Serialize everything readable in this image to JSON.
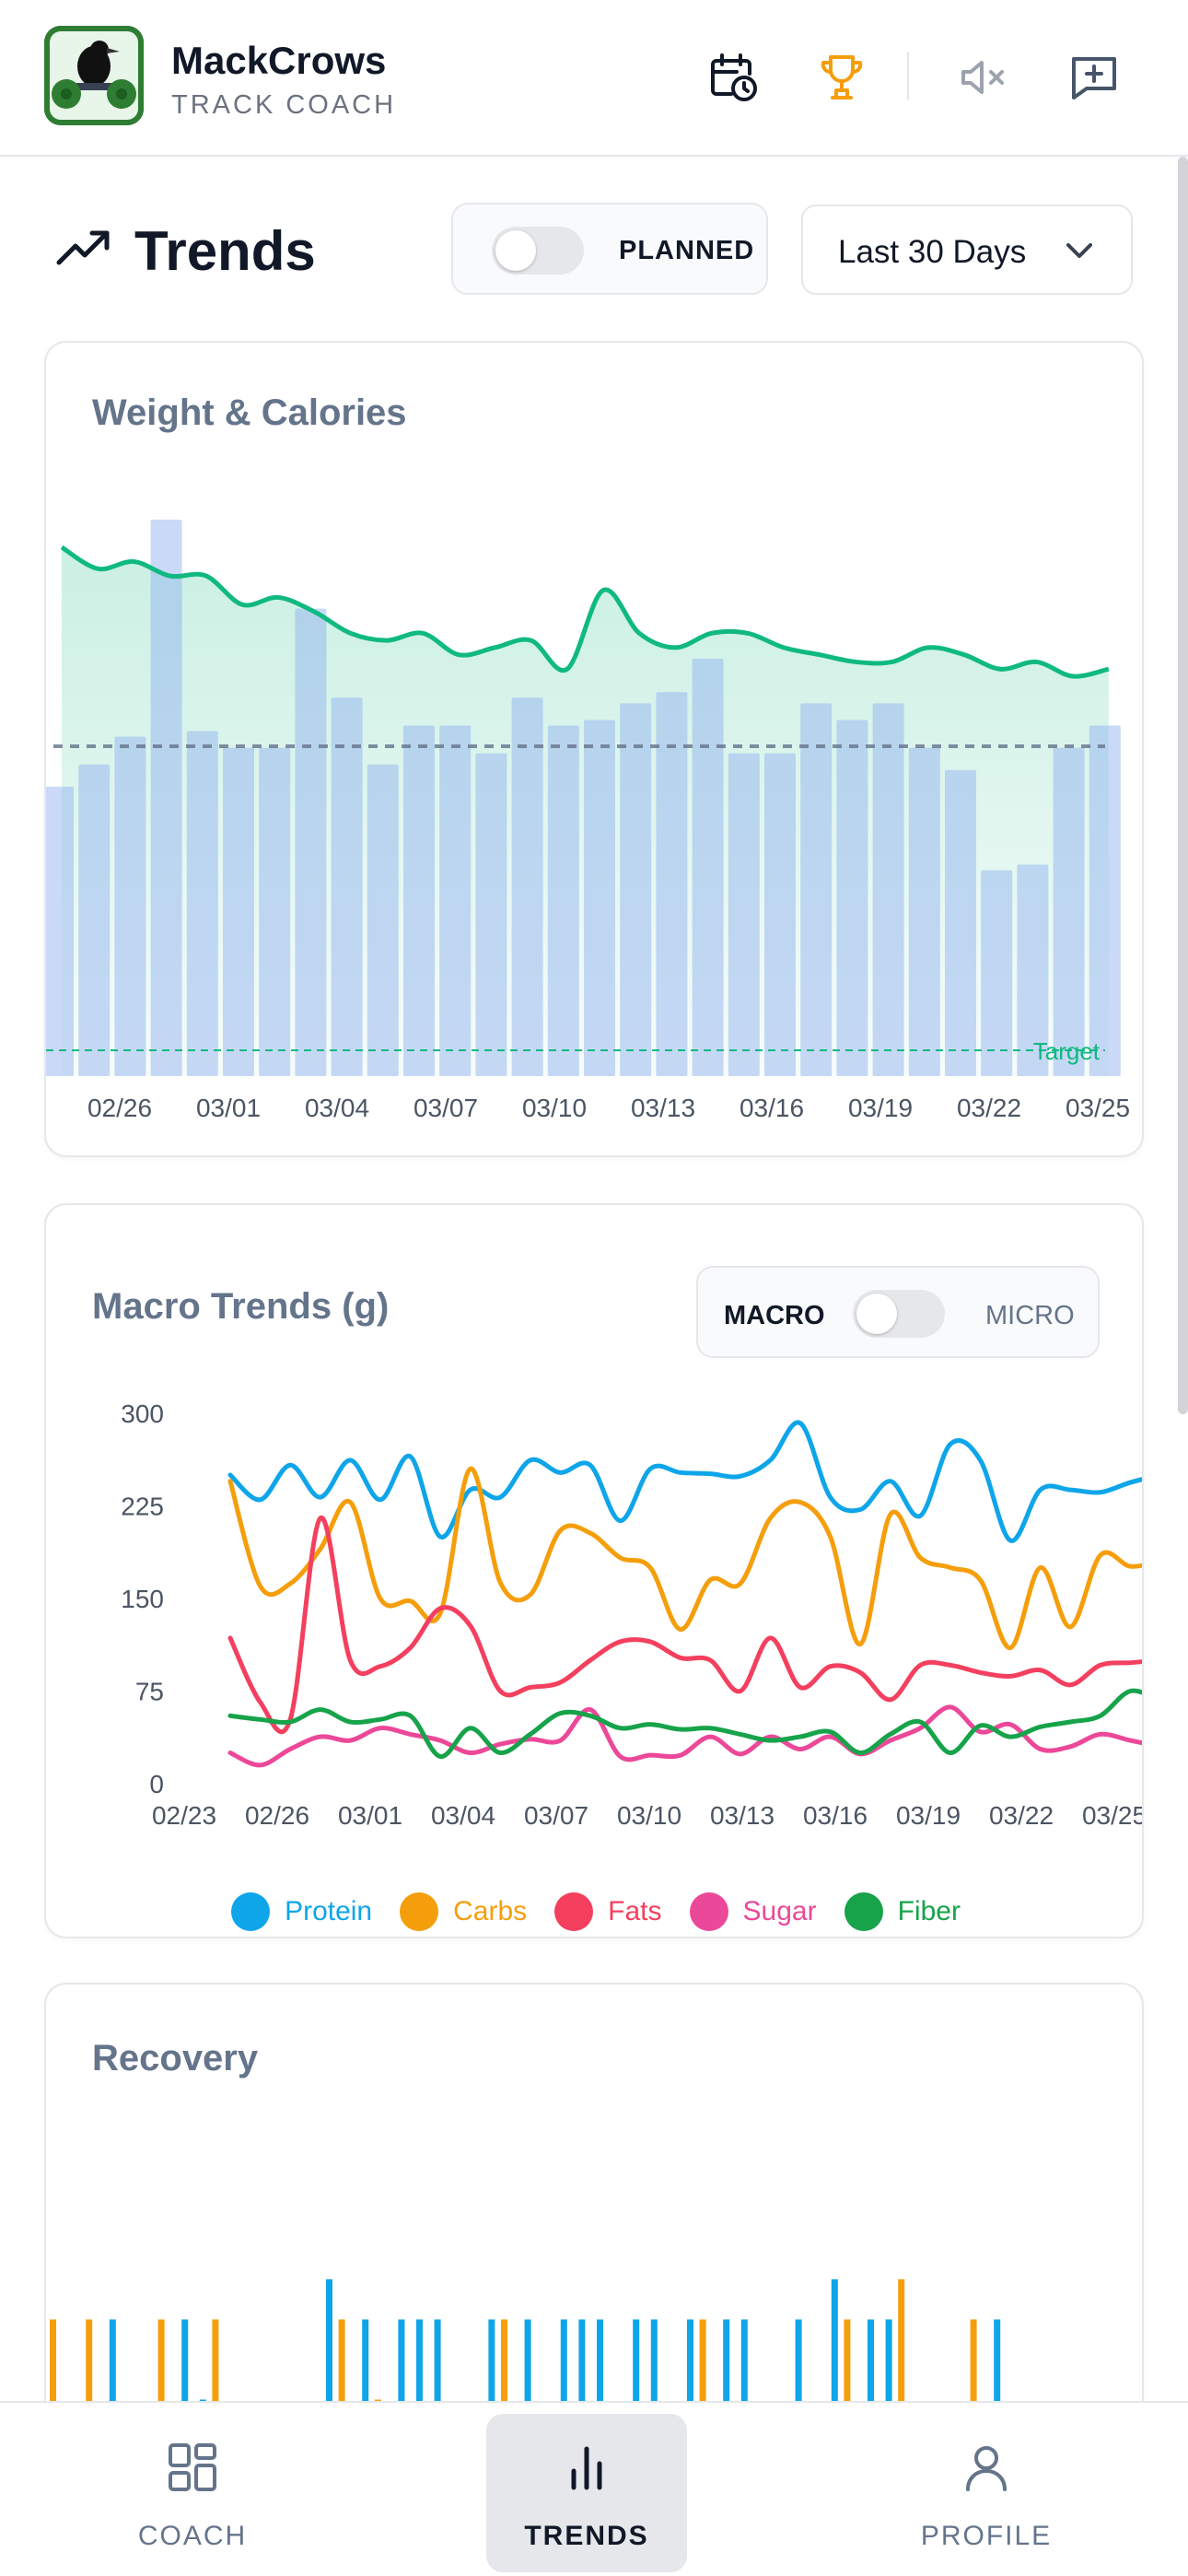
{
  "header": {
    "brand_name": "MackCrows",
    "brand_sub": "TRACK COACH",
    "icons": [
      "calendar-clock-icon",
      "trophy-icon",
      "volume-mute-icon",
      "feedback-icon"
    ]
  },
  "page": {
    "title": "Trends",
    "planned_label": "PLANNED",
    "planned_on": false,
    "range_selected": "Last 30 Days"
  },
  "weight_card": {
    "title": "Weight & Calories",
    "target_label": "Target",
    "x_ticks": [
      "02/26",
      "03/01",
      "03/04",
      "03/07",
      "03/10",
      "03/13",
      "03/16",
      "03/19",
      "03/22",
      "03/25"
    ],
    "chart_data": {
      "type": "bar",
      "title": "Weight & Calories",
      "note_series": [
        "calories (bars, relative)",
        "weight (line, relative)"
      ],
      "calories": [
        0.52,
        0.56,
        0.61,
        1.0,
        0.62,
        0.59,
        0.59,
        0.84,
        0.68,
        0.56,
        0.63,
        0.63,
        0.58,
        0.68,
        0.63,
        0.64,
        0.67,
        0.69,
        0.75,
        0.58,
        0.58,
        0.67,
        0.64,
        0.67,
        0.59,
        0.55,
        0.37,
        0.38,
        0.59,
        0.63
      ],
      "weight": [
        0.84,
        0.81,
        0.82,
        0.8,
        0.8,
        0.76,
        0.77,
        0.75,
        0.72,
        0.71,
        0.72,
        0.69,
        0.7,
        0.71,
        0.67,
        0.78,
        0.72,
        0.7,
        0.72,
        0.72,
        0.7,
        0.69,
        0.68,
        0.68,
        0.7,
        0.69,
        0.67,
        0.68,
        0.66,
        0.67
      ]
    }
  },
  "macro_card": {
    "title": "Macro Trends (g)",
    "toggle_left": "MACRO",
    "toggle_right": "MICRO",
    "chart_data": {
      "type": "line",
      "title": "Macro Trends (g)",
      "ylim": [
        0,
        300
      ],
      "y_ticks": [
        0,
        75,
        150,
        225,
        300
      ],
      "x_ticks": [
        "02/23",
        "02/26",
        "03/01",
        "03/04",
        "03/07",
        "03/10",
        "03/13",
        "03/16",
        "03/19",
        "03/22",
        "03/25"
      ],
      "series": [
        {
          "name": "Protein",
          "color": "#0ea5e9",
          "values": [
            250,
            230,
            258,
            232,
            262,
            230,
            265,
            200,
            238,
            232,
            262,
            252,
            258,
            213,
            255,
            252,
            251,
            249,
            262,
            292,
            232,
            222,
            245,
            217,
            275,
            262,
            197,
            238,
            238,
            236,
            244,
            250
          ]
        },
        {
          "name": "Carbs",
          "color": "#f59e0b",
          "values": [
            245,
            160,
            162,
            190,
            228,
            150,
            148,
            138,
            255,
            163,
            153,
            205,
            203,
            183,
            175,
            125,
            165,
            162,
            215,
            228,
            200,
            113,
            218,
            183,
            175,
            165,
            110,
            175,
            127,
            185,
            176,
            180
          ]
        },
        {
          "name": "Fats",
          "color": "#f43f5e",
          "values": [
            118,
            66,
            52,
            215,
            100,
            95,
            110,
            142,
            128,
            75,
            78,
            82,
            100,
            115,
            115,
            102,
            100,
            75,
            118,
            78,
            95,
            90,
            68,
            96,
            96,
            90,
            87,
            92,
            80,
            96,
            98,
            100
          ]
        },
        {
          "name": "Sugar",
          "color": "#ec4899",
          "values": [
            25,
            15,
            28,
            38,
            35,
            45,
            40,
            35,
            25,
            32,
            36,
            35,
            60,
            22,
            23,
            23,
            38,
            24,
            38,
            28,
            38,
            24,
            35,
            45,
            62,
            42,
            48,
            28,
            30,
            40,
            35,
            30
          ]
        },
        {
          "name": "Fiber",
          "color": "#16a34a",
          "values": [
            55,
            52,
            50,
            60,
            50,
            52,
            55,
            22,
            45,
            25,
            40,
            57,
            55,
            45,
            48,
            44,
            45,
            40,
            35,
            38,
            42,
            25,
            40,
            50,
            25,
            47,
            38,
            46,
            50,
            55,
            75,
            67
          ]
        }
      ]
    }
  },
  "recovery_card": {
    "title": "Recovery",
    "chart_data": {
      "type": "bar",
      "title": "Recovery",
      "note_series": [
        "blue (relative)",
        "orange (relative)"
      ],
      "blue": [
        0.0,
        0.44,
        0.0,
        0.85,
        0.0,
        0.19,
        0.0,
        0.85,
        0.55,
        0.0,
        0.44,
        0.0,
        0.19,
        0.0,
        0.0,
        1.0,
        0.0,
        0.85,
        0.0,
        0.85,
        0.85,
        0.85,
        0.44,
        0.0,
        0.85,
        0.0,
        0.85,
        0.0,
        0.85,
        0.85,
        0.85,
        0.0,
        0.85,
        0.85,
        0.0,
        0.85,
        0.0,
        0.85,
        0.85,
        0.0,
        0.0,
        0.85,
        0.44,
        1.0,
        0.0,
        0.85,
        0.85,
        0.0,
        0.44,
        0.0,
        0.44,
        0.0,
        0.85
      ],
      "orange": [
        0.85,
        0.0,
        0.85,
        0.0,
        0.0,
        0.0,
        0.85,
        0.0,
        0.0,
        0.85,
        0.0,
        0.0,
        0.0,
        0.0,
        0.0,
        0.0,
        0.85,
        0.0,
        0.55,
        0.0,
        0.0,
        0.0,
        0.0,
        0.0,
        0.0,
        0.85,
        0.0,
        0.0,
        0.0,
        0.0,
        0.0,
        0.0,
        0.0,
        0.0,
        0.0,
        0.0,
        0.85,
        0.0,
        0.0,
        0.0,
        0.0,
        0.0,
        0.0,
        0.0,
        0.85,
        0.0,
        0.0,
        1.0,
        0.0,
        0.0,
        0.0,
        0.85,
        0.0
      ]
    }
  },
  "nav": {
    "items": [
      {
        "label": "COACH",
        "icon": "grid-icon"
      },
      {
        "label": "TRENDS",
        "icon": "bar-chart-icon",
        "active": true
      },
      {
        "label": "PROFILE",
        "icon": "user-icon"
      }
    ]
  }
}
